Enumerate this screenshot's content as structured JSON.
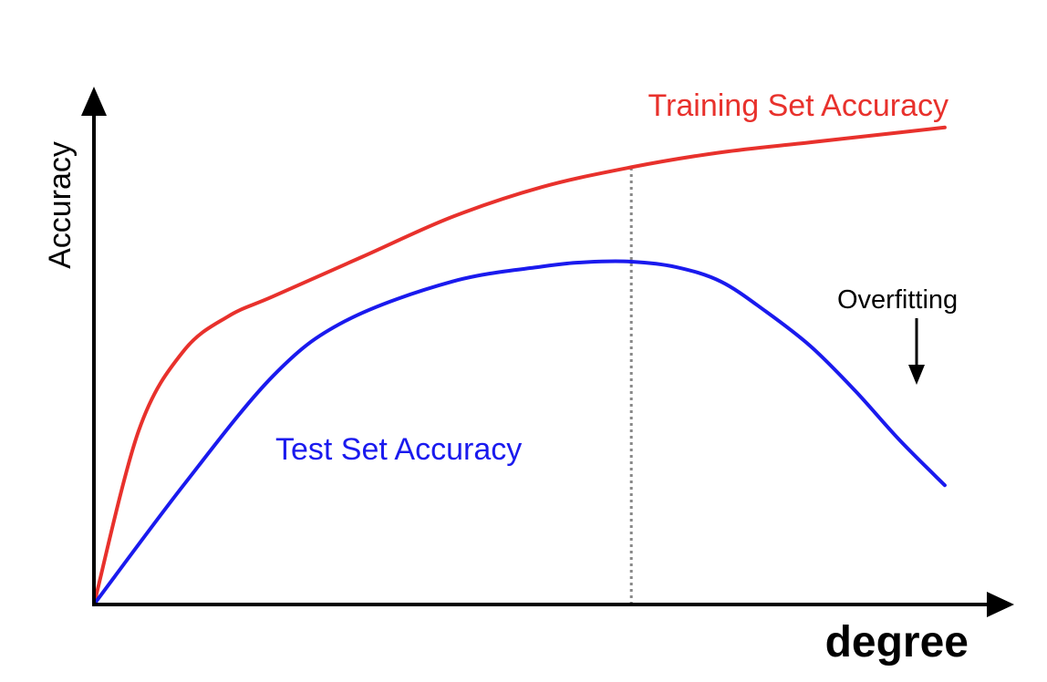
{
  "chart_data": {
    "type": "line",
    "title": "",
    "xlabel": "degree",
    "ylabel": "Accuracy",
    "xlim": [
      0,
      1
    ],
    "ylim": [
      0,
      1
    ],
    "grid": false,
    "axis_ticks": false,
    "series": [
      {
        "name": "Training Set Accuracy",
        "color": "#e8312c",
        "x": [
          0,
          0.05,
          0.1,
          0.15,
          0.2,
          0.3,
          0.4,
          0.5,
          0.6,
          0.7,
          0.8,
          0.9,
          0.95
        ],
        "y": [
          0,
          0.35,
          0.51,
          0.58,
          0.62,
          0.7,
          0.78,
          0.84,
          0.88,
          0.91,
          0.93,
          0.95,
          0.96
        ]
      },
      {
        "name": "Test Set Accuracy",
        "color": "#1a1aee",
        "x": [
          0,
          0.1,
          0.2,
          0.28,
          0.4,
          0.5,
          0.55,
          0.6,
          0.65,
          0.7,
          0.75,
          0.8,
          0.85,
          0.9,
          0.95
        ],
        "y": [
          0,
          0.24,
          0.46,
          0.57,
          0.65,
          0.68,
          0.689,
          0.69,
          0.679,
          0.65,
          0.59,
          0.52,
          0.43,
          0.33,
          0.24
        ]
      }
    ],
    "annotations": {
      "vertical_marker": {
        "x": 0.6,
        "style": "dotted",
        "color": "#888888"
      },
      "overfitting": {
        "label": "Overfitting",
        "arrow": "down",
        "points_to_series": "Test Set Accuracy"
      }
    }
  }
}
